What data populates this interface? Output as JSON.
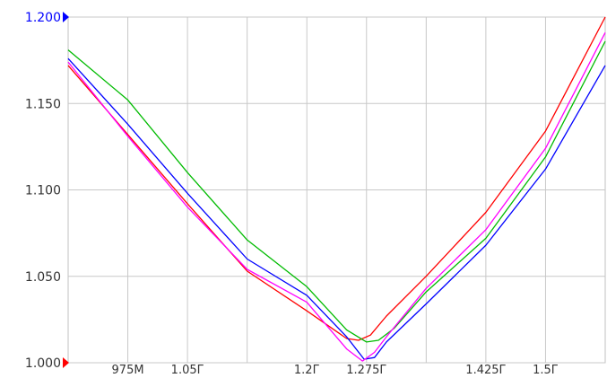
{
  "chart_data": {
    "type": "line",
    "title": "",
    "xlabel": "",
    "ylabel": "",
    "grid": true,
    "legend": "none",
    "xlim": [
      900000000,
      1575000000
    ],
    "ylim": [
      1.0,
      1.2
    ],
    "x_ticks": [
      {
        "value": 975000000,
        "label": "975M"
      },
      {
        "value": 1050000000,
        "label": "1.05Г"
      },
      {
        "value": 1125000000,
        "label": ""
      },
      {
        "value": 1200000000,
        "label": "1.2Г"
      },
      {
        "value": 1275000000,
        "label": "1.275Г"
      },
      {
        "value": 1350000000,
        "label": ""
      },
      {
        "value": 1425000000,
        "label": "1.425Г"
      },
      {
        "value": 1500000000,
        "label": "1.5Г"
      }
    ],
    "y_ticks": [
      {
        "value": 1.2,
        "label": "1.200"
      },
      {
        "value": 1.15,
        "label": "1.150"
      },
      {
        "value": 1.1,
        "label": "1.100"
      },
      {
        "value": 1.05,
        "label": "1.050"
      },
      {
        "value": 1.0,
        "label": "1.000"
      }
    ],
    "markers": [
      {
        "axis": "y",
        "value": 1.2,
        "color": "#0000ff"
      },
      {
        "axis": "y",
        "value": 1.0,
        "color": "#ff0000"
      }
    ],
    "series": [
      {
        "color": "#ff0000",
        "x": [
          900000000,
          975000000,
          1050000000,
          1125000000,
          1200000000,
          1250000000,
          1265000000,
          1280000000,
          1300000000,
          1350000000,
          1425000000,
          1500000000,
          1575000000
        ],
        "y": [
          1.172,
          1.132,
          1.092,
          1.053,
          1.03,
          1.014,
          1.013,
          1.016,
          1.027,
          1.05,
          1.087,
          1.134,
          1.2
        ]
      },
      {
        "color": "#0000ff",
        "x": [
          900000000,
          975000000,
          1050000000,
          1125000000,
          1200000000,
          1250000000,
          1272000000,
          1285000000,
          1300000000,
          1350000000,
          1425000000,
          1500000000,
          1575000000
        ],
        "y": [
          1.176,
          1.138,
          1.098,
          1.06,
          1.039,
          1.015,
          1.002,
          1.003,
          1.012,
          1.034,
          1.068,
          1.112,
          1.172
        ]
      },
      {
        "color": "#00bb00",
        "x": [
          900000000,
          975000000,
          1050000000,
          1125000000,
          1200000000,
          1250000000,
          1275000000,
          1290000000,
          1310000000,
          1350000000,
          1425000000,
          1500000000,
          1575000000
        ],
        "y": [
          1.181,
          1.152,
          1.11,
          1.071,
          1.044,
          1.019,
          1.012,
          1.013,
          1.02,
          1.041,
          1.072,
          1.119,
          1.186
        ]
      },
      {
        "color": "#ff00ff",
        "x": [
          900000000,
          975000000,
          1050000000,
          1125000000,
          1200000000,
          1250000000,
          1270000000,
          1285000000,
          1300000000,
          1350000000,
          1425000000,
          1500000000,
          1575000000
        ],
        "y": [
          1.174,
          1.131,
          1.09,
          1.054,
          1.035,
          1.008,
          1.001,
          1.006,
          1.015,
          1.043,
          1.077,
          1.124,
          1.191
        ]
      }
    ]
  }
}
